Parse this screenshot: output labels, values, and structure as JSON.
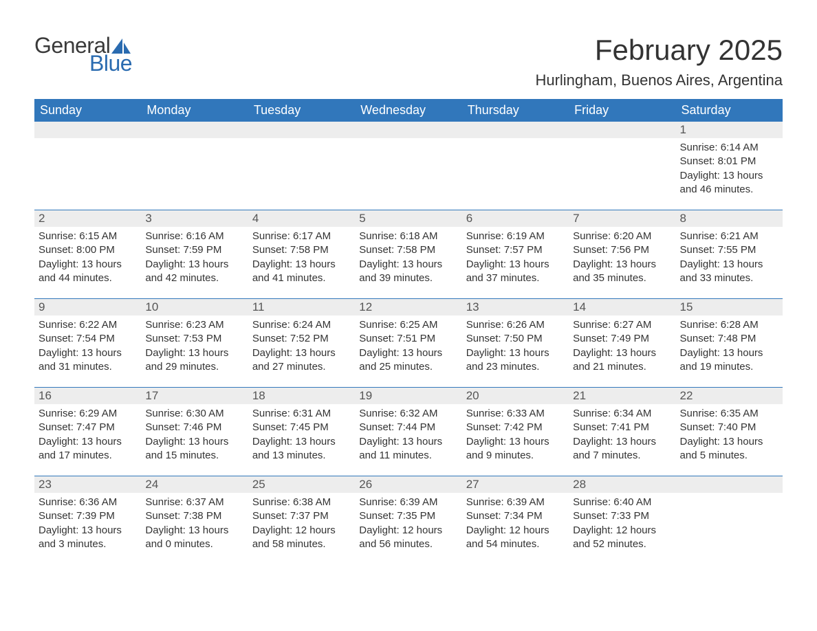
{
  "colors": {
    "header_bg": "#3177bb",
    "header_text": "#ffffff",
    "daynum_bg": "#ededed",
    "text": "#333333",
    "logo_gray": "#3a3a3a",
    "logo_blue": "#2a6bb0",
    "border": "#3177bb",
    "page_bg": "#ffffff"
  },
  "logo": {
    "word1": "General",
    "word2": "Blue"
  },
  "title": "February 2025",
  "location": "Hurlingham, Buenos Aires, Argentina",
  "weekdays": [
    "Sunday",
    "Monday",
    "Tuesday",
    "Wednesday",
    "Thursday",
    "Friday",
    "Saturday"
  ],
  "weeks": [
    [
      {
        "day": "",
        "sunrise": "",
        "sunset": "",
        "daylight": ""
      },
      {
        "day": "",
        "sunrise": "",
        "sunset": "",
        "daylight": ""
      },
      {
        "day": "",
        "sunrise": "",
        "sunset": "",
        "daylight": ""
      },
      {
        "day": "",
        "sunrise": "",
        "sunset": "",
        "daylight": ""
      },
      {
        "day": "",
        "sunrise": "",
        "sunset": "",
        "daylight": ""
      },
      {
        "day": "",
        "sunrise": "",
        "sunset": "",
        "daylight": ""
      },
      {
        "day": "1",
        "sunrise": "Sunrise: 6:14 AM",
        "sunset": "Sunset: 8:01 PM",
        "daylight": "Daylight: 13 hours and 46 minutes."
      }
    ],
    [
      {
        "day": "2",
        "sunrise": "Sunrise: 6:15 AM",
        "sunset": "Sunset: 8:00 PM",
        "daylight": "Daylight: 13 hours and 44 minutes."
      },
      {
        "day": "3",
        "sunrise": "Sunrise: 6:16 AM",
        "sunset": "Sunset: 7:59 PM",
        "daylight": "Daylight: 13 hours and 42 minutes."
      },
      {
        "day": "4",
        "sunrise": "Sunrise: 6:17 AM",
        "sunset": "Sunset: 7:58 PM",
        "daylight": "Daylight: 13 hours and 41 minutes."
      },
      {
        "day": "5",
        "sunrise": "Sunrise: 6:18 AM",
        "sunset": "Sunset: 7:58 PM",
        "daylight": "Daylight: 13 hours and 39 minutes."
      },
      {
        "day": "6",
        "sunrise": "Sunrise: 6:19 AM",
        "sunset": "Sunset: 7:57 PM",
        "daylight": "Daylight: 13 hours and 37 minutes."
      },
      {
        "day": "7",
        "sunrise": "Sunrise: 6:20 AM",
        "sunset": "Sunset: 7:56 PM",
        "daylight": "Daylight: 13 hours and 35 minutes."
      },
      {
        "day": "8",
        "sunrise": "Sunrise: 6:21 AM",
        "sunset": "Sunset: 7:55 PM",
        "daylight": "Daylight: 13 hours and 33 minutes."
      }
    ],
    [
      {
        "day": "9",
        "sunrise": "Sunrise: 6:22 AM",
        "sunset": "Sunset: 7:54 PM",
        "daylight": "Daylight: 13 hours and 31 minutes."
      },
      {
        "day": "10",
        "sunrise": "Sunrise: 6:23 AM",
        "sunset": "Sunset: 7:53 PM",
        "daylight": "Daylight: 13 hours and 29 minutes."
      },
      {
        "day": "11",
        "sunrise": "Sunrise: 6:24 AM",
        "sunset": "Sunset: 7:52 PM",
        "daylight": "Daylight: 13 hours and 27 minutes."
      },
      {
        "day": "12",
        "sunrise": "Sunrise: 6:25 AM",
        "sunset": "Sunset: 7:51 PM",
        "daylight": "Daylight: 13 hours and 25 minutes."
      },
      {
        "day": "13",
        "sunrise": "Sunrise: 6:26 AM",
        "sunset": "Sunset: 7:50 PM",
        "daylight": "Daylight: 13 hours and 23 minutes."
      },
      {
        "day": "14",
        "sunrise": "Sunrise: 6:27 AM",
        "sunset": "Sunset: 7:49 PM",
        "daylight": "Daylight: 13 hours and 21 minutes."
      },
      {
        "day": "15",
        "sunrise": "Sunrise: 6:28 AM",
        "sunset": "Sunset: 7:48 PM",
        "daylight": "Daylight: 13 hours and 19 minutes."
      }
    ],
    [
      {
        "day": "16",
        "sunrise": "Sunrise: 6:29 AM",
        "sunset": "Sunset: 7:47 PM",
        "daylight": "Daylight: 13 hours and 17 minutes."
      },
      {
        "day": "17",
        "sunrise": "Sunrise: 6:30 AM",
        "sunset": "Sunset: 7:46 PM",
        "daylight": "Daylight: 13 hours and 15 minutes."
      },
      {
        "day": "18",
        "sunrise": "Sunrise: 6:31 AM",
        "sunset": "Sunset: 7:45 PM",
        "daylight": "Daylight: 13 hours and 13 minutes."
      },
      {
        "day": "19",
        "sunrise": "Sunrise: 6:32 AM",
        "sunset": "Sunset: 7:44 PM",
        "daylight": "Daylight: 13 hours and 11 minutes."
      },
      {
        "day": "20",
        "sunrise": "Sunrise: 6:33 AM",
        "sunset": "Sunset: 7:42 PM",
        "daylight": "Daylight: 13 hours and 9 minutes."
      },
      {
        "day": "21",
        "sunrise": "Sunrise: 6:34 AM",
        "sunset": "Sunset: 7:41 PM",
        "daylight": "Daylight: 13 hours and 7 minutes."
      },
      {
        "day": "22",
        "sunrise": "Sunrise: 6:35 AM",
        "sunset": "Sunset: 7:40 PM",
        "daylight": "Daylight: 13 hours and 5 minutes."
      }
    ],
    [
      {
        "day": "23",
        "sunrise": "Sunrise: 6:36 AM",
        "sunset": "Sunset: 7:39 PM",
        "daylight": "Daylight: 13 hours and 3 minutes."
      },
      {
        "day": "24",
        "sunrise": "Sunrise: 6:37 AM",
        "sunset": "Sunset: 7:38 PM",
        "daylight": "Daylight: 13 hours and 0 minutes."
      },
      {
        "day": "25",
        "sunrise": "Sunrise: 6:38 AM",
        "sunset": "Sunset: 7:37 PM",
        "daylight": "Daylight: 12 hours and 58 minutes."
      },
      {
        "day": "26",
        "sunrise": "Sunrise: 6:39 AM",
        "sunset": "Sunset: 7:35 PM",
        "daylight": "Daylight: 12 hours and 56 minutes."
      },
      {
        "day": "27",
        "sunrise": "Sunrise: 6:39 AM",
        "sunset": "Sunset: 7:34 PM",
        "daylight": "Daylight: 12 hours and 54 minutes."
      },
      {
        "day": "28",
        "sunrise": "Sunrise: 6:40 AM",
        "sunset": "Sunset: 7:33 PM",
        "daylight": "Daylight: 12 hours and 52 minutes."
      },
      {
        "day": "",
        "sunrise": "",
        "sunset": "",
        "daylight": ""
      }
    ]
  ]
}
